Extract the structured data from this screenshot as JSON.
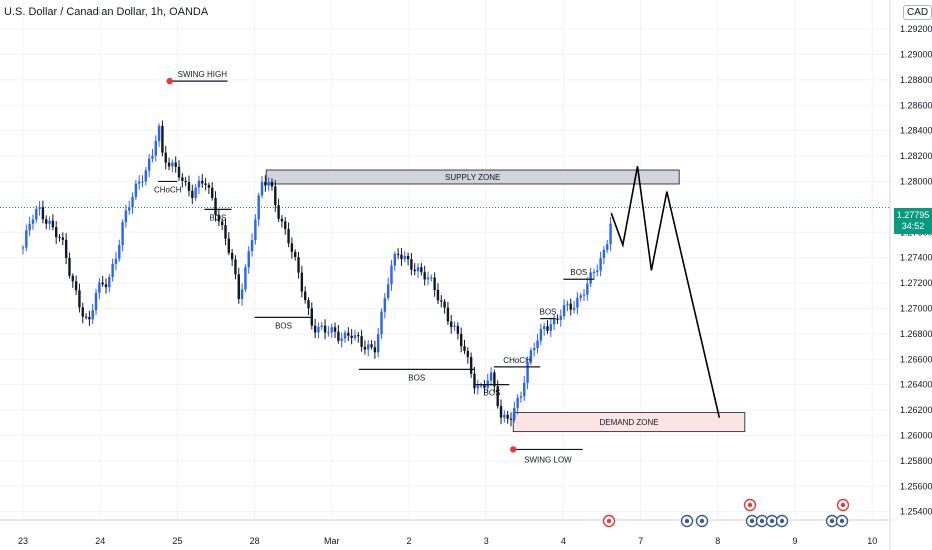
{
  "header": {
    "title": "U.S. Dollar / Canadian Dollar, 1h, OANDA",
    "currency_badge": "CAD"
  },
  "last_price": {
    "value": "1.27795",
    "countdown": "34:52"
  },
  "colors": {
    "up": "#2962ff",
    "down": "#131722",
    "grid": "#f0f3fa",
    "last_price": "#089981",
    "supply_zone_fill": "#d1d4dc",
    "demand_zone_fill": "#fde4e4",
    "swing_marker": "#e53935"
  },
  "chart_data": {
    "type": "candlestick",
    "symbol": "USD/CAD",
    "timeframe": "1h",
    "x_axis": {
      "tick_labels": [
        "23",
        "24",
        "25",
        "28",
        "Mar",
        "2",
        "3",
        "4",
        "7",
        "8",
        "9",
        "10"
      ]
    },
    "y_axis": {
      "tick_labels": [
        "1.29200",
        "1.29000",
        "1.28800",
        "1.28600",
        "1.28400",
        "1.28200",
        "1.28000",
        "1.27600",
        "1.27400",
        "1.27200",
        "1.27000",
        "1.26800",
        "1.26600",
        "1.26400",
        "1.26200",
        "1.26000",
        "1.25800",
        "1.25600",
        "1.25400"
      ],
      "range": [
        1.2535,
        1.2935
      ]
    },
    "price_path": [
      {
        "day": 0.0,
        "price": 1.2748
      },
      {
        "day": 0.1,
        "price": 1.2768
      },
      {
        "day": 0.2,
        "price": 1.2778
      },
      {
        "day": 0.35,
        "price": 1.2768
      },
      {
        "day": 0.5,
        "price": 1.2752
      },
      {
        "day": 0.6,
        "price": 1.2728
      },
      {
        "day": 0.75,
        "price": 1.2702
      },
      {
        "day": 0.85,
        "price": 1.2687
      },
      {
        "day": 0.95,
        "price": 1.2712
      },
      {
        "day": 1.1,
        "price": 1.2722
      },
      {
        "day": 1.2,
        "price": 1.2742
      },
      {
        "day": 1.3,
        "price": 1.2768
      },
      {
        "day": 1.45,
        "price": 1.2792
      },
      {
        "day": 1.6,
        "price": 1.2812
      },
      {
        "day": 1.7,
        "price": 1.2826
      },
      {
        "day": 1.75,
        "price": 1.2848
      },
      {
        "day": 1.8,
        "price": 1.2818
      },
      {
        "day": 1.9,
        "price": 1.2812
      },
      {
        "day": 2.0,
        "price": 1.2812
      },
      {
        "day": 2.1,
        "price": 1.2798
      },
      {
        "day": 2.2,
        "price": 1.2788
      },
      {
        "day": 2.35,
        "price": 1.2802
      },
      {
        "day": 2.45,
        "price": 1.2788
      },
      {
        "day": 2.55,
        "price": 1.2768
      },
      {
        "day": 2.7,
        "price": 1.2738
      },
      {
        "day": 2.8,
        "price": 1.2708
      },
      {
        "day": 2.9,
        "price": 1.2738
      },
      {
        "day": 3.0,
        "price": 1.2768
      },
      {
        "day": 3.1,
        "price": 1.2798
      },
      {
        "day": 3.2,
        "price": 1.2798
      },
      {
        "day": 3.3,
        "price": 1.2778
      },
      {
        "day": 3.45,
        "price": 1.2752
      },
      {
        "day": 3.6,
        "price": 1.2718
      },
      {
        "day": 3.75,
        "price": 1.2688
      },
      {
        "day": 3.9,
        "price": 1.2682
      },
      {
        "day": 4.1,
        "price": 1.2678
      },
      {
        "day": 4.25,
        "price": 1.2682
      },
      {
        "day": 4.4,
        "price": 1.2668
      },
      {
        "day": 4.55,
        "price": 1.2668
      },
      {
        "day": 4.65,
        "price": 1.2698
      },
      {
        "day": 4.75,
        "price": 1.2728
      },
      {
        "day": 4.85,
        "price": 1.2742
      },
      {
        "day": 5.0,
        "price": 1.2738
      },
      {
        "day": 5.15,
        "price": 1.2728
      },
      {
        "day": 5.3,
        "price": 1.2718
      },
      {
        "day": 5.45,
        "price": 1.2702
      },
      {
        "day": 5.55,
        "price": 1.2688
      },
      {
        "day": 5.7,
        "price": 1.2668
      },
      {
        "day": 5.85,
        "price": 1.2642
      },
      {
        "day": 5.95,
        "price": 1.2638
      },
      {
        "day": 6.05,
        "price": 1.2648
      },
      {
        "day": 6.2,
        "price": 1.2612
      },
      {
        "day": 6.3,
        "price": 1.2616
      },
      {
        "day": 6.45,
        "price": 1.2632
      },
      {
        "day": 6.6,
        "price": 1.2668
      },
      {
        "day": 6.75,
        "price": 1.2688
      },
      {
        "day": 6.9,
        "price": 1.2688
      },
      {
        "day": 7.0,
        "price": 1.2698
      },
      {
        "day": 7.15,
        "price": 1.2705
      },
      {
        "day": 7.3,
        "price": 1.2718
      },
      {
        "day": 7.45,
        "price": 1.2732
      },
      {
        "day": 7.55,
        "price": 1.2748
      },
      {
        "day": 7.62,
        "price": 1.2775
      }
    ],
    "projection_path": [
      {
        "day": 7.62,
        "price": 1.2775
      },
      {
        "day": 7.77,
        "price": 1.275
      },
      {
        "day": 7.96,
        "price": 1.2812
      },
      {
        "day": 8.14,
        "price": 1.273
      },
      {
        "day": 8.34,
        "price": 1.2792
      },
      {
        "day": 9.02,
        "price": 1.2614
      }
    ],
    "zones": [
      {
        "label": "SUPPLY ZONE",
        "day_start": 3.15,
        "day_end": 8.5,
        "price_low": 1.2798,
        "price_high": 1.2809
      },
      {
        "label": "DEMAND ZONE",
        "day_start": 6.35,
        "day_end": 9.35,
        "price_low": 1.2603,
        "price_high": 1.2618
      }
    ],
    "annotations": [
      {
        "text": "SWING HIGH",
        "price": 1.2879,
        "day_start": 1.9,
        "day_end": 2.65
      },
      {
        "text": "CHoCH",
        "price": 1.28,
        "day_start": 1.75,
        "day_end": 2.0
      },
      {
        "text": "BOS",
        "price": 1.2778,
        "day_start": 2.35,
        "day_end": 2.7
      },
      {
        "text": "BOS",
        "price": 1.2693,
        "day_start": 3.0,
        "day_end": 3.75
      },
      {
        "text": "BOS",
        "price": 1.2652,
        "day_start": 4.35,
        "day_end": 5.85
      },
      {
        "text": "BOS",
        "price": 1.264,
        "day_start": 5.85,
        "day_end": 6.3
      },
      {
        "text": "CHoCH",
        "price": 1.2654,
        "day_start": 6.1,
        "day_end": 6.7
      },
      {
        "text": "BOS",
        "price": 1.2692,
        "day_start": 6.7,
        "day_end": 6.9
      },
      {
        "text": "BOS",
        "price": 1.2723,
        "day_start": 7.0,
        "day_end": 7.4
      },
      {
        "text": "SWING LOW",
        "price": 1.2589,
        "day_start": 6.35,
        "day_end": 7.25
      }
    ],
    "swing_points": [
      {
        "label": "swing-high",
        "day": 1.9,
        "price": 1.2879
      },
      {
        "label": "swing-low",
        "day": 6.35,
        "price": 1.2589
      }
    ],
    "grid": true,
    "legend": "none"
  }
}
